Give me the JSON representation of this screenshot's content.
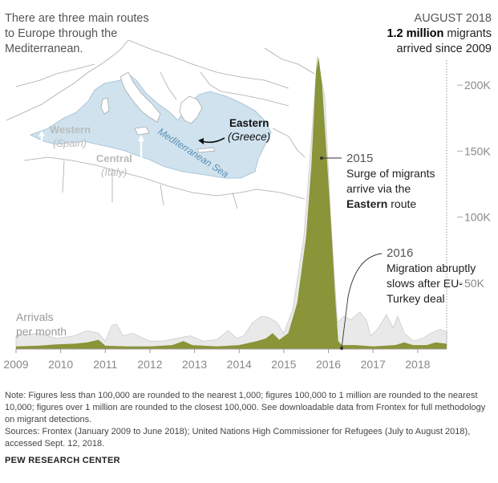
{
  "intro_text": "There are three main routes to Europe through the Mediterranean.",
  "headline": {
    "period": "AUGUST 2018",
    "total": "1.2 million",
    "rest_line1": " migrants",
    "rest_line2": "arrived since 2009"
  },
  "map": {
    "sea_label": "Mediterranean Sea",
    "routes": [
      {
        "name": "Western",
        "country": "(Spain)"
      },
      {
        "name": "Central",
        "country": "(Italy)"
      },
      {
        "name": "Eastern",
        "country": "(Greece)"
      }
    ],
    "colors": {
      "sea": "#cfe2ee",
      "land_border": "#aaaaaa",
      "sea_label": "#5b8fb3",
      "route_arrow": "#111111"
    }
  },
  "annotations": {
    "a2015": {
      "year": "2015",
      "line1": "Surge of migrants",
      "line2": "arrive via the",
      "bold": "Eastern",
      "tail": " route"
    },
    "a2016": {
      "year": "2016",
      "line1": "Migration abruptly",
      "line2": "slows after EU-",
      "line3": "Turkey deal"
    }
  },
  "arrivals_label": {
    "line1": "Arrivals",
    "line2": "per month"
  },
  "chart_data": {
    "type": "area",
    "title": "",
    "xlabel": "",
    "ylabel": "Arrivals per month",
    "x_ticks": [
      "2009",
      "2010",
      "2011",
      "2012",
      "2013",
      "2014",
      "2015",
      "2016",
      "2017",
      "2018"
    ],
    "y_ticks": [
      "50K",
      "100K",
      "150K",
      "200K"
    ],
    "y_tick_values": [
      50000,
      100000,
      150000,
      200000
    ],
    "xlim": [
      2009.0,
      2018.65
    ],
    "ylim": [
      0,
      225000
    ],
    "grid": false,
    "colors": {
      "eastern": "#8a9438",
      "other_routes": "#e9e9e9",
      "other_routes_line": "#cccccc"
    },
    "series": [
      {
        "name": "Eastern",
        "x": [
          2009.0,
          2009.5,
          2009.9,
          2010.3,
          2010.6,
          2010.85,
          2011.0,
          2011.5,
          2012.0,
          2012.5,
          2012.75,
          2012.95,
          2013.5,
          2014.0,
          2014.4,
          2014.6,
          2014.75,
          2014.9,
          2015.1,
          2015.3,
          2015.5,
          2015.62,
          2015.72,
          2015.78,
          2015.86,
          2015.95,
          2016.05,
          2016.15,
          2016.22,
          2016.3,
          2016.6,
          2017.0,
          2017.5,
          2017.7,
          2017.9,
          2018.2,
          2018.4,
          2018.65
        ],
        "values": [
          2000,
          2500,
          3500,
          4000,
          5000,
          7000,
          2500,
          2000,
          2000,
          3000,
          6000,
          3000,
          2000,
          3000,
          6000,
          8000,
          12000,
          7000,
          12000,
          35000,
          85000,
          140000,
          210000,
          221000,
          200000,
          152000,
          100000,
          40000,
          6000,
          3000,
          3000,
          2000,
          3000,
          5000,
          3000,
          3000,
          5000,
          4000
        ]
      },
      {
        "name": "All routes",
        "x": [
          2009.0,
          2009.5,
          2009.9,
          2010.3,
          2010.6,
          2010.85,
          2011.0,
          2011.15,
          2011.25,
          2011.4,
          2011.6,
          2012.0,
          2012.3,
          2012.6,
          2012.9,
          2013.2,
          2013.5,
          2013.75,
          2013.95,
          2014.1,
          2014.3,
          2014.5,
          2014.65,
          2014.85,
          2015.0,
          2015.2,
          2015.45,
          2015.6,
          2015.75,
          2015.92,
          2016.05,
          2016.2,
          2016.35,
          2016.5,
          2016.7,
          2016.85,
          2016.95,
          2017.1,
          2017.3,
          2017.45,
          2017.55,
          2017.7,
          2017.9,
          2018.1,
          2018.3,
          2018.5,
          2018.65
        ],
        "values": [
          10000,
          12000,
          8000,
          10000,
          14000,
          12000,
          6000,
          18000,
          19000,
          10000,
          12000,
          6000,
          6000,
          8000,
          10000,
          6000,
          7000,
          14000,
          8000,
          10000,
          20000,
          25000,
          24000,
          20000,
          12000,
          30000,
          85000,
          150000,
          222000,
          190000,
          100000,
          20000,
          25000,
          22000,
          28000,
          22000,
          10000,
          15000,
          26000,
          16000,
          25000,
          12000,
          6000,
          8000,
          12000,
          15000,
          13000
        ]
      }
    ]
  },
  "note": "Note: Figures less than 100,000 are rounded to the nearest 1,000; figures 100,000 to 1 million are rounded to the nearest 10,000; figures over 1 million are rounded to the closest 100,000. See downloadable data from Frontex for full methodology on migrant detections.",
  "sources": "Sources: Frontex (January 2009 to June 2018); United Nations High Commissioner for Refugees (July to August 2018), accessed Sept. 12, 2018.",
  "brand": "PEW RESEARCH CENTER"
}
